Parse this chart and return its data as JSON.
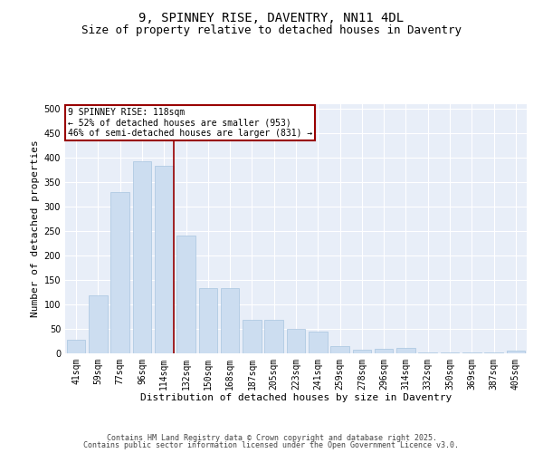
{
  "title": "9, SPINNEY RISE, DAVENTRY, NN11 4DL",
  "subtitle": "Size of property relative to detached houses in Daventry",
  "xlabel": "Distribution of detached houses by size in Daventry",
  "ylabel": "Number of detached properties",
  "categories": [
    "41sqm",
    "59sqm",
    "77sqm",
    "96sqm",
    "114sqm",
    "132sqm",
    "150sqm",
    "168sqm",
    "187sqm",
    "205sqm",
    "223sqm",
    "241sqm",
    "259sqm",
    "278sqm",
    "296sqm",
    "314sqm",
    "332sqm",
    "350sqm",
    "369sqm",
    "387sqm",
    "405sqm"
  ],
  "values": [
    27,
    118,
    330,
    393,
    383,
    242,
    133,
    133,
    69,
    69,
    50,
    44,
    14,
    7,
    10,
    11,
    2,
    2,
    2,
    2,
    5
  ],
  "bar_color": "#ccddf0",
  "bar_edge_color": "#a8c4e0",
  "vline_x_index": 4,
  "vline_color": "#990000",
  "annotation_text": "9 SPINNEY RISE: 118sqm\n← 52% of detached houses are smaller (953)\n46% of semi-detached houses are larger (831) →",
  "annotation_box_color": "#990000",
  "ylim": [
    0,
    510
  ],
  "yticks": [
    0,
    50,
    100,
    150,
    200,
    250,
    300,
    350,
    400,
    450,
    500
  ],
  "background_color": "#e8eef8",
  "grid_color": "#ffffff",
  "footer_line1": "Contains HM Land Registry data © Crown copyright and database right 2025.",
  "footer_line2": "Contains public sector information licensed under the Open Government Licence v3.0.",
  "title_fontsize": 10,
  "subtitle_fontsize": 9,
  "xlabel_fontsize": 8,
  "ylabel_fontsize": 8,
  "tick_fontsize": 7,
  "annotation_fontsize": 7,
  "footer_fontsize": 6
}
